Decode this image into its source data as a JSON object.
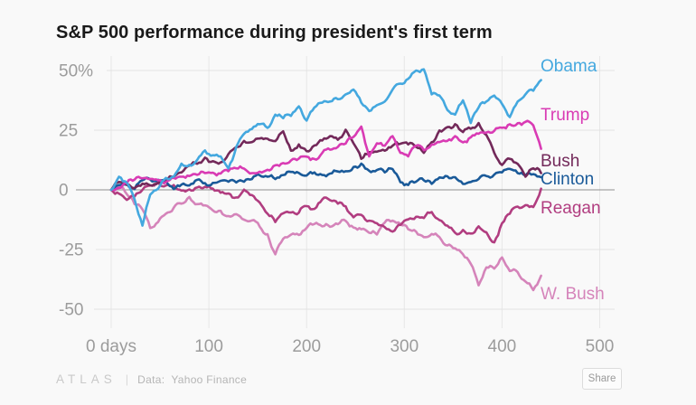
{
  "title": "S&P 500 performance during president's first term",
  "chart_data": {
    "type": "line",
    "title": "S&P 500 performance during president's first term",
    "x_unit": "trading days since inauguration",
    "x_ticks": [
      0,
      100,
      200,
      300,
      400,
      500
    ],
    "x_tick_labels": [
      "0 days",
      "100",
      "200",
      "300",
      "400",
      "500"
    ],
    "y_ticks": [
      50,
      25,
      0,
      -25,
      -50
    ],
    "y_tick_labels": [
      "50%",
      "25",
      "0",
      "-25",
      "-50"
    ],
    "xlim": [
      0,
      500
    ],
    "ylim": [
      -55,
      55
    ],
    "grid": true,
    "legend_position": "right of line ends",
    "day_step": 8,
    "series": [
      {
        "name": "Obama",
        "color": "#44A8DF",
        "label_y_pct": 49.6,
        "values": [
          0,
          5.5,
          3,
          -4,
          -15,
          -2,
          0.5,
          5,
          5.5,
          11,
          10.5,
          12.5,
          16.5,
          14.5,
          14,
          9,
          18,
          23.5,
          25.5,
          27.5,
          26,
          31.5,
          30,
          31,
          35,
          29,
          34.5,
          36.5,
          37,
          38,
          40,
          42,
          36.5,
          33,
          35.5,
          37,
          42,
          44.5,
          46.5,
          50,
          50.5,
          40,
          39.5,
          33.5,
          31.5,
          37.5,
          28,
          34.5,
          37,
          39.5,
          36,
          30.5,
          37,
          40,
          41.5,
          46
        ]
      },
      {
        "name": "Trump",
        "color": "#D93BB4",
        "label_y_pct": 29.2,
        "values": [
          0,
          0.8,
          2.8,
          4.3,
          4.8,
          4.6,
          4.0,
          3.2,
          5.0,
          5.5,
          5.8,
          6.3,
          7.0,
          7.2,
          6.8,
          7.8,
          9.0,
          8.9,
          7.0,
          7.6,
          8.4,
          10.3,
          11.2,
          12.3,
          13.1,
          13.9,
          12.9,
          15.5,
          16.8,
          18.0,
          19.4,
          22.2,
          26.5,
          14.0,
          19.5,
          18.5,
          22.5,
          15.5,
          14.0,
          18.5,
          16.6,
          19.0,
          20.0,
          20.5,
          22.5,
          19.9,
          22.0,
          23.5,
          24.0,
          24.7,
          26.0,
          27.5,
          27.9,
          28.5,
          27.0,
          17.2
        ]
      },
      {
        "name": "Bush",
        "color": "#73295A",
        "label_y_pct": 9.8,
        "values": [
          0,
          3.3,
          2.0,
          0.8,
          2.6,
          1.9,
          2.9,
          4.2,
          5.4,
          7.3,
          10.2,
          10.9,
          13.5,
          12.0,
          11.5,
          15.0,
          17.9,
          20.5,
          20.0,
          21.5,
          21.4,
          20.4,
          24.5,
          16.4,
          19.0,
          16.2,
          18.6,
          20.7,
          22.5,
          21.0,
          25.2,
          19.5,
          13.0,
          15.8,
          16.0,
          16.4,
          18.5,
          19.3,
          19.0,
          18.0,
          15.5,
          20.0,
          24.9,
          26.3,
          27.5,
          24.2,
          25.6,
          28.0,
          23.0,
          15.5,
          10.4,
          13.0,
          10.9,
          5.5,
          9.0,
          7.0
        ]
      },
      {
        "name": "Clinton",
        "color": "#1A5A99",
        "label_y_pct": 2.3,
        "values": [
          0,
          2.0,
          2.7,
          0.3,
          4.0,
          4.3,
          4.2,
          3.4,
          0.3,
          2.2,
          1.8,
          4.2,
          2.8,
          2.9,
          3.8,
          3.4,
          3.1,
          3.4,
          4.5,
          6.1,
          5.5,
          4.5,
          6.2,
          7.5,
          7.1,
          6.0,
          7.3,
          6.2,
          6.8,
          7.7,
          7.8,
          9.6,
          11.0,
          8.0,
          8.3,
          7.3,
          8.7,
          3.2,
          2.0,
          3.4,
          4.0,
          2.5,
          5.2,
          5.7,
          5.3,
          2.5,
          3.3,
          4.5,
          5.8,
          6.4,
          7.3,
          8.8,
          7.0,
          6.0,
          6.6,
          5.3
        ]
      },
      {
        "name": "Reagan",
        "color": "#B13D80",
        "label_y_pct": -9.8,
        "values": [
          0,
          -1.6,
          -4.2,
          -2.8,
          0.0,
          1.8,
          3.3,
          1.8,
          2.0,
          -0.3,
          0.2,
          1.0,
          1.3,
          0.5,
          -1.2,
          -1.5,
          -3.2,
          0.1,
          -2.2,
          -5.3,
          -10.0,
          -13.5,
          -9.8,
          -9.5,
          -9.6,
          -6.8,
          -8.0,
          -4.0,
          -4.3,
          -5.8,
          -6.9,
          -11.5,
          -10.5,
          -12.9,
          -14.0,
          -15.7,
          -17.5,
          -14.7,
          -12.4,
          -11.3,
          -11.8,
          -9.3,
          -12.7,
          -15.0,
          -18.0,
          -16.8,
          -18.3,
          -15.3,
          -17.8,
          -22.0,
          -14.0,
          -10.0,
          -7.0,
          -6.4,
          -7.2,
          0.5
        ]
      },
      {
        "name": "W. Bush",
        "color": "#D584BA",
        "label_y_pct": -45.8,
        "values": [
          0,
          1.8,
          -1.8,
          -6.0,
          -8.2,
          -16.0,
          -13.5,
          -10.0,
          -7.5,
          -5.8,
          -3.0,
          -6.0,
          -6.5,
          -8.6,
          -8.8,
          -11.0,
          -10.2,
          -12.5,
          -12.8,
          -15.4,
          -18.6,
          -27.0,
          -20.5,
          -18.8,
          -18.9,
          -16.0,
          -14.3,
          -15.3,
          -15.5,
          -14.4,
          -13.0,
          -15.8,
          -16.5,
          -18.0,
          -18.7,
          -13.7,
          -12.9,
          -14.4,
          -16.5,
          -17.5,
          -19.8,
          -18.5,
          -19.8,
          -23.3,
          -24.5,
          -27.0,
          -31.0,
          -40.0,
          -32.5,
          -33.0,
          -28.3,
          -34.0,
          -34.5,
          -38.4,
          -42.0,
          -36.0
        ]
      }
    ]
  },
  "footer": {
    "logo": "ATLAS",
    "divider": "|",
    "source_prefix": "Data:",
    "source": "Yahoo Finance",
    "share_label": "Share"
  }
}
